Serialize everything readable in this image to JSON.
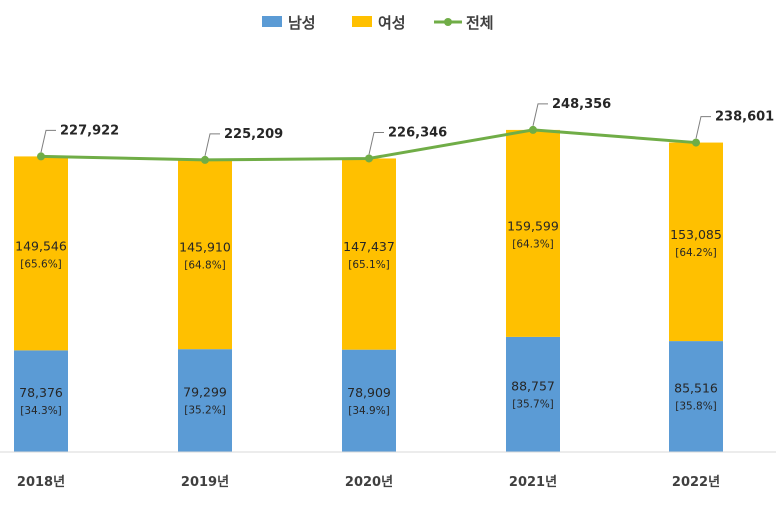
{
  "chart_data": {
    "type": "bar",
    "stacked": true,
    "categories": [
      "2018년",
      "2019년",
      "2020년",
      "2021년",
      "2022년"
    ],
    "series": [
      {
        "name": "남성",
        "color": "#5B9BD5",
        "values": [
          78376,
          79299,
          78909,
          88757,
          85516
        ],
        "value_labels": [
          "78,376",
          "79,299",
          "78,909",
          "88,757",
          "85,516"
        ],
        "pct_labels": [
          "[34.3%]",
          "[35.2%]",
          "[34.9%]",
          "[35.7%]",
          "[35.8%]"
        ]
      },
      {
        "name": "여성",
        "color": "#FFC000",
        "values": [
          149546,
          145910,
          147437,
          159599,
          153085
        ],
        "value_labels": [
          "149,546",
          "145,910",
          "147,437",
          "159,599",
          "153,085"
        ],
        "pct_labels": [
          "[65.6%]",
          "[64.8%]",
          "[65.1%]",
          "[64.3%]",
          "[64.2%]"
        ]
      },
      {
        "name": "전체",
        "type": "line",
        "color": "#70AD47",
        "values": [
          227922,
          225209,
          226346,
          248356,
          238601
        ],
        "value_labels": [
          "227,922",
          "225,209",
          "226,346",
          "248,356",
          "238,601"
        ]
      }
    ],
    "title": "",
    "xlabel": "",
    "ylabel": "",
    "ylim": [
      0,
      320000
    ],
    "grid": false,
    "legend": "top-center"
  }
}
